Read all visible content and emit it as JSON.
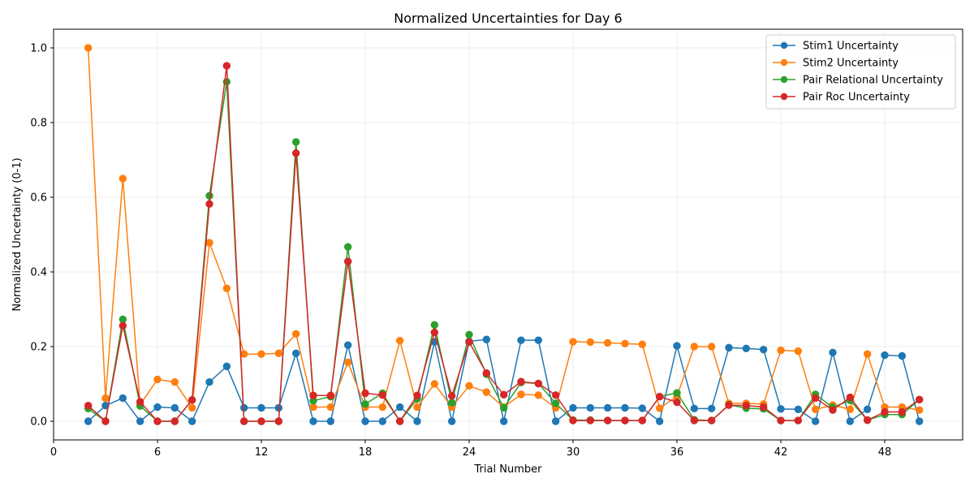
{
  "chart_data": {
    "type": "line",
    "title": "Normalized Uncertainties for Day 6",
    "xlabel": "Trial Number",
    "ylabel": "Normalized Uncertainty (0-1)",
    "xlim": [
      0,
      52.5
    ],
    "ylim": [
      -0.05,
      1.05
    ],
    "xticks": [
      0,
      6,
      12,
      18,
      24,
      30,
      36,
      42,
      48
    ],
    "yticks": [
      0.0,
      0.2,
      0.4,
      0.6,
      0.8,
      1.0
    ],
    "ytick_labels": [
      "0.0",
      "0.2",
      "0.4",
      "0.6",
      "0.8",
      "1.0"
    ],
    "grid": true,
    "legend_position": "top-right",
    "x": [
      2,
      3,
      4,
      5,
      6,
      7,
      8,
      9,
      10,
      11,
      12,
      13,
      14,
      15,
      16,
      17,
      18,
      19,
      20,
      21,
      22,
      23,
      24,
      25,
      26,
      27,
      28,
      29,
      30,
      31,
      32,
      33,
      34,
      35,
      36,
      37,
      38,
      39,
      40,
      41,
      42,
      43,
      44,
      45,
      46,
      47,
      48,
      49,
      50
    ],
    "series": [
      {
        "name": "Stim1 Uncertainty",
        "color": "#1f77b4",
        "values": [
          0.0,
          0.042,
          0.062,
          0.0,
          0.038,
          0.036,
          0.0,
          0.105,
          0.147,
          0.036,
          0.036,
          0.036,
          0.182,
          0.0,
          0.0,
          0.204,
          0.0,
          0.0,
          0.038,
          0.0,
          0.213,
          0.0,
          0.214,
          0.219,
          0.0,
          0.217,
          0.217,
          0.0,
          0.036,
          0.036,
          0.036,
          0.036,
          0.035,
          0.0,
          0.202,
          0.034,
          0.034,
          0.197,
          0.195,
          0.192,
          0.033,
          0.032,
          0.0,
          0.184,
          0.0,
          0.032,
          0.177,
          0.175,
          0.0
        ]
      },
      {
        "name": "Stim2 Uncertainty",
        "color": "#ff7f0e",
        "values": [
          1.0,
          0.062,
          0.65,
          0.045,
          0.112,
          0.105,
          0.036,
          0.478,
          0.356,
          0.18,
          0.18,
          0.182,
          0.234,
          0.038,
          0.038,
          0.158,
          0.038,
          0.038,
          0.216,
          0.038,
          0.1,
          0.038,
          0.095,
          0.078,
          0.038,
          0.072,
          0.07,
          0.036,
          0.213,
          0.212,
          0.21,
          0.208,
          0.206,
          0.035,
          0.066,
          0.2,
          0.2,
          0.048,
          0.048,
          0.046,
          0.19,
          0.188,
          0.032,
          0.043,
          0.032,
          0.18,
          0.038,
          0.038,
          0.03
        ]
      },
      {
        "name": "Pair Relational Uncertainty",
        "color": "#2ca02c",
        "values": [
          0.034,
          0.0,
          0.273,
          0.041,
          0.0,
          0.0,
          0.057,
          0.604,
          0.909,
          0.0,
          0.0,
          0.0,
          0.748,
          0.055,
          0.066,
          0.467,
          0.046,
          0.075,
          0.0,
          0.06,
          0.258,
          0.05,
          0.232,
          0.126,
          0.036,
          0.104,
          0.101,
          0.048,
          0.003,
          0.003,
          0.002,
          0.002,
          0.002,
          0.066,
          0.076,
          0.004,
          0.002,
          0.044,
          0.035,
          0.033,
          0.002,
          0.002,
          0.072,
          0.037,
          0.056,
          0.003,
          0.018,
          0.018,
          0.058
        ]
      },
      {
        "name": "Pair Roc Uncertainty",
        "color": "#d62728",
        "values": [
          0.042,
          0.0,
          0.256,
          0.052,
          0.0,
          0.0,
          0.057,
          0.582,
          0.952,
          0.0,
          0.0,
          0.0,
          0.718,
          0.069,
          0.069,
          0.428,
          0.075,
          0.07,
          0.0,
          0.069,
          0.238,
          0.068,
          0.212,
          0.129,
          0.071,
          0.106,
          0.101,
          0.07,
          0.002,
          0.002,
          0.002,
          0.002,
          0.002,
          0.066,
          0.051,
          0.002,
          0.002,
          0.043,
          0.042,
          0.038,
          0.002,
          0.002,
          0.062,
          0.03,
          0.064,
          0.003,
          0.025,
          0.025,
          0.058
        ]
      }
    ]
  }
}
